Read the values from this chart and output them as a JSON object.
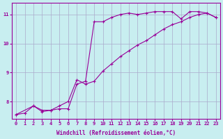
{
  "xlabel": "Windchill (Refroidissement éolien,°C)",
  "ylabel": "",
  "bg_color": "#c8eef0",
  "line_color": "#990099",
  "grid_color": "#aaaacc",
  "xlim": [
    -0.5,
    23.5
  ],
  "ylim": [
    7.4,
    11.4
  ],
  "xticks": [
    0,
    1,
    2,
    3,
    4,
    5,
    6,
    7,
    8,
    9,
    10,
    11,
    12,
    13,
    14,
    15,
    16,
    17,
    18,
    19,
    20,
    21,
    22,
    23
  ],
  "yticks": [
    8,
    9,
    10,
    11
  ],
  "line1_x": [
    0,
    1,
    2,
    3,
    4,
    5,
    6,
    7,
    8,
    9,
    10,
    11,
    12,
    13,
    14,
    15,
    16,
    17,
    18,
    19,
    20,
    21,
    22,
    23
  ],
  "line1_y": [
    7.55,
    7.6,
    7.85,
    7.7,
    7.7,
    7.75,
    7.75,
    8.6,
    8.7,
    10.75,
    10.75,
    10.9,
    11.0,
    11.05,
    11.0,
    11.05,
    11.1,
    11.1,
    11.1,
    10.85,
    11.1,
    11.1,
    11.05,
    10.9
  ],
  "line2_x": [
    0,
    2,
    3,
    4,
    5,
    6,
    7,
    8,
    9,
    10,
    11,
    12,
    13,
    14,
    15,
    16,
    17,
    18,
    19,
    20,
    21,
    22,
    23
  ],
  "line2_y": [
    7.55,
    7.85,
    7.65,
    7.7,
    7.85,
    8.0,
    8.75,
    8.6,
    8.7,
    9.05,
    9.3,
    9.55,
    9.75,
    9.95,
    10.1,
    10.3,
    10.5,
    10.65,
    10.75,
    10.9,
    11.0,
    11.05,
    10.9
  ]
}
